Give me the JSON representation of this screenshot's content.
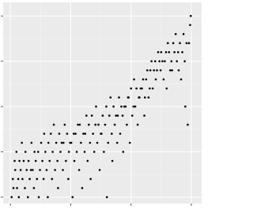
{
  "chart_data": {
    "type": "scatter",
    "x": [
      2,
      4,
      5,
      7,
      8,
      10,
      11,
      13,
      14,
      15,
      17,
      19,
      20,
      22,
      24,
      25,
      27,
      29,
      30,
      32,
      34,
      35,
      37,
      39,
      40,
      42,
      44,
      46,
      47,
      49,
      51,
      53,
      55,
      56,
      58,
      60,
      62,
      63,
      65,
      67,
      69,
      70,
      72,
      74,
      76,
      78,
      79,
      81,
      83,
      85,
      87,
      88,
      90,
      92,
      94,
      96,
      97,
      99,
      101,
      103,
      105,
      106,
      108,
      110,
      112,
      114,
      115,
      117,
      119,
      121,
      123,
      124,
      126,
      128,
      130,
      132,
      133,
      135,
      137,
      139,
      141,
      142,
      144,
      146,
      148,
      150,
      151,
      153,
      155,
      157,
      159,
      160,
      162,
      164,
      166,
      168,
      169,
      171,
      173,
      175,
      177,
      178,
      180,
      182,
      184,
      186,
      187,
      189,
      191,
      193,
      195,
      196,
      198,
      200,
      202,
      204,
      205,
      207,
      209,
      211,
      213,
      214,
      216,
      218,
      220,
      222,
      223,
      225,
      227,
      229,
      231,
      232,
      234,
      236,
      238,
      240,
      241,
      243,
      245,
      247,
      249,
      250,
      252,
      254,
      256,
      258,
      259,
      261,
      263,
      265,
      267,
      268,
      270,
      272,
      274,
      276,
      278,
      279,
      281,
      283,
      285,
      287,
      289,
      290,
      292,
      294,
      296,
      298,
      299
    ],
    "y": [
      0,
      2,
      1,
      4,
      3,
      5,
      1,
      2,
      0,
      4,
      3,
      6,
      2,
      4,
      1,
      5,
      3,
      0,
      4,
      2,
      3,
      6,
      3,
      1,
      5,
      4,
      2,
      5,
      0,
      3,
      6,
      4,
      2,
      7,
      5,
      3,
      0,
      6,
      4,
      7,
      2,
      5,
      8,
      3,
      6,
      4,
      1,
      7,
      5,
      6,
      3,
      6,
      8,
      4,
      7,
      2,
      5,
      6,
      6,
      0,
      7,
      4,
      7,
      5,
      8,
      3,
      8,
      6,
      1,
      7,
      5,
      7,
      9,
      4,
      8,
      6,
      2,
      9,
      7,
      5,
      8,
      10,
      6,
      8,
      3,
      7,
      7,
      9,
      5,
      8,
      10,
      0,
      6,
      9,
      11,
      7,
      4,
      10,
      8,
      9,
      6,
      9,
      11,
      7,
      10,
      9,
      5,
      10,
      10,
      8,
      11,
      11,
      6,
      12,
      9,
      10,
      13,
      10,
      12,
      8,
      11,
      11,
      12,
      12,
      13,
      9,
      11,
      13,
      14,
      11,
      12,
      14,
      15,
      12,
      14,
      15,
      13,
      14,
      16,
      15,
      14,
      16,
      15,
      13,
      15,
      16,
      12,
      17,
      16,
      14,
      15,
      14,
      17,
      16,
      18,
      15,
      16,
      14,
      17,
      13,
      16,
      18,
      15,
      10,
      17,
      8,
      17,
      19,
      20
    ],
    "xlim": [
      -12,
      317
    ],
    "ylim": [
      -0.7,
      21.5
    ],
    "xticks": [
      0,
      100,
      200,
      300
    ],
    "yticks": [
      0,
      5,
      10,
      15,
      20
    ],
    "color": "#000000",
    "grid": true
  }
}
